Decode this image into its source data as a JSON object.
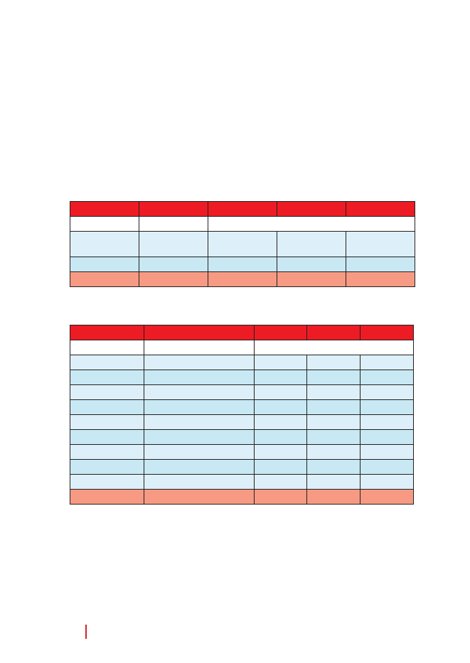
{
  "colors": {
    "header_red": "#ed1c24",
    "row_light_blue": "#ddf0f9",
    "row_blue": "#c8e8f4",
    "footer_salmon": "#f79a84",
    "border": "#231f20",
    "page_marker": "#d2232a"
  },
  "tables": [
    {
      "columns": 5,
      "rows": [
        "header",
        "white-merged",
        "light-blue-tall",
        "blue",
        "salmon-total"
      ]
    },
    {
      "columns": 5,
      "rows": [
        "header",
        "white-merged",
        "light-blue",
        "blue",
        "light-blue",
        "blue",
        "light-blue",
        "blue",
        "light-blue",
        "blue",
        "light-blue",
        "salmon-total"
      ]
    }
  ]
}
